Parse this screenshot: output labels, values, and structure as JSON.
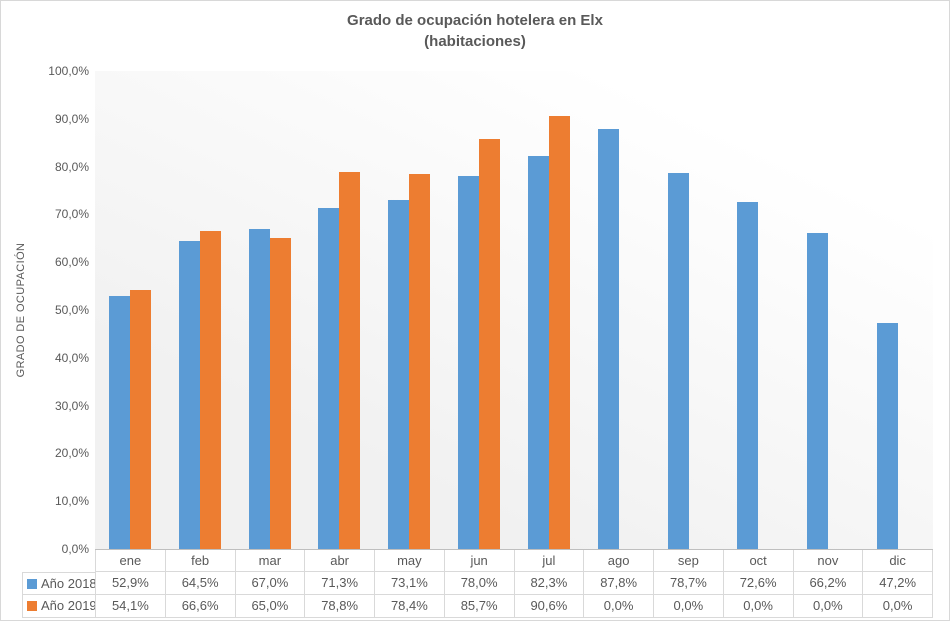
{
  "title": {
    "line1": "Grado de ocupación hotelera en Elx",
    "line2": "(habitaciones)"
  },
  "y_axis": {
    "title": "GRADO DE OCUPACIÓN",
    "ticks": [
      {
        "value": 100,
        "label": "100,0%"
      },
      {
        "value": 90,
        "label": "90,0%"
      },
      {
        "value": 80,
        "label": "80,0%"
      },
      {
        "value": 70,
        "label": "70,0%"
      },
      {
        "value": 60,
        "label": "60,0%"
      },
      {
        "value": 50,
        "label": "50,0%"
      },
      {
        "value": 40,
        "label": "40,0%"
      },
      {
        "value": 30,
        "label": "30,0%"
      },
      {
        "value": 20,
        "label": "20,0%"
      },
      {
        "value": 10,
        "label": "10,0%"
      },
      {
        "value": 0,
        "label": "0,0%"
      }
    ]
  },
  "chart_data": {
    "type": "bar",
    "title": "Grado de ocupación hotelera en Elx (habitaciones)",
    "xlabel": "",
    "ylabel": "GRADO DE OCUPACIÓN",
    "ylim": [
      0,
      100
    ],
    "y_tick_step": 10,
    "grid": false,
    "legend_position": "table-left",
    "categories": [
      "ene",
      "feb",
      "mar",
      "abr",
      "may",
      "jun",
      "jul",
      "ago",
      "sep",
      "oct",
      "nov",
      "dic"
    ],
    "series": [
      {
        "name": "Año 2018",
        "color": "#5B9BD5",
        "values": [
          52.9,
          64.5,
          67.0,
          71.3,
          73.1,
          78.0,
          82.3,
          87.8,
          78.7,
          72.6,
          66.2,
          47.2
        ],
        "labels": [
          "52,9%",
          "64,5%",
          "67,0%",
          "71,3%",
          "73,1%",
          "78,0%",
          "82,3%",
          "87,8%",
          "78,7%",
          "72,6%",
          "66,2%",
          "47,2%"
        ]
      },
      {
        "name": "Año 2019",
        "color": "#ED7D31",
        "values": [
          54.1,
          66.6,
          65.0,
          78.8,
          78.4,
          85.7,
          90.6,
          0,
          0,
          0,
          0,
          0
        ],
        "labels": [
          "54,1%",
          "66,6%",
          "65,0%",
          "78,8%",
          "78,4%",
          "85,7%",
          "90,6%",
          "0,0%",
          "0,0%",
          "0,0%",
          "0,0%",
          "0,0%"
        ]
      }
    ]
  },
  "colors": {
    "series_2018": "#5B9BD5",
    "series_2019": "#ED7D31",
    "text": "#595959",
    "table_border": "#D9D9D9",
    "axis_line": "#BFBFBF"
  }
}
